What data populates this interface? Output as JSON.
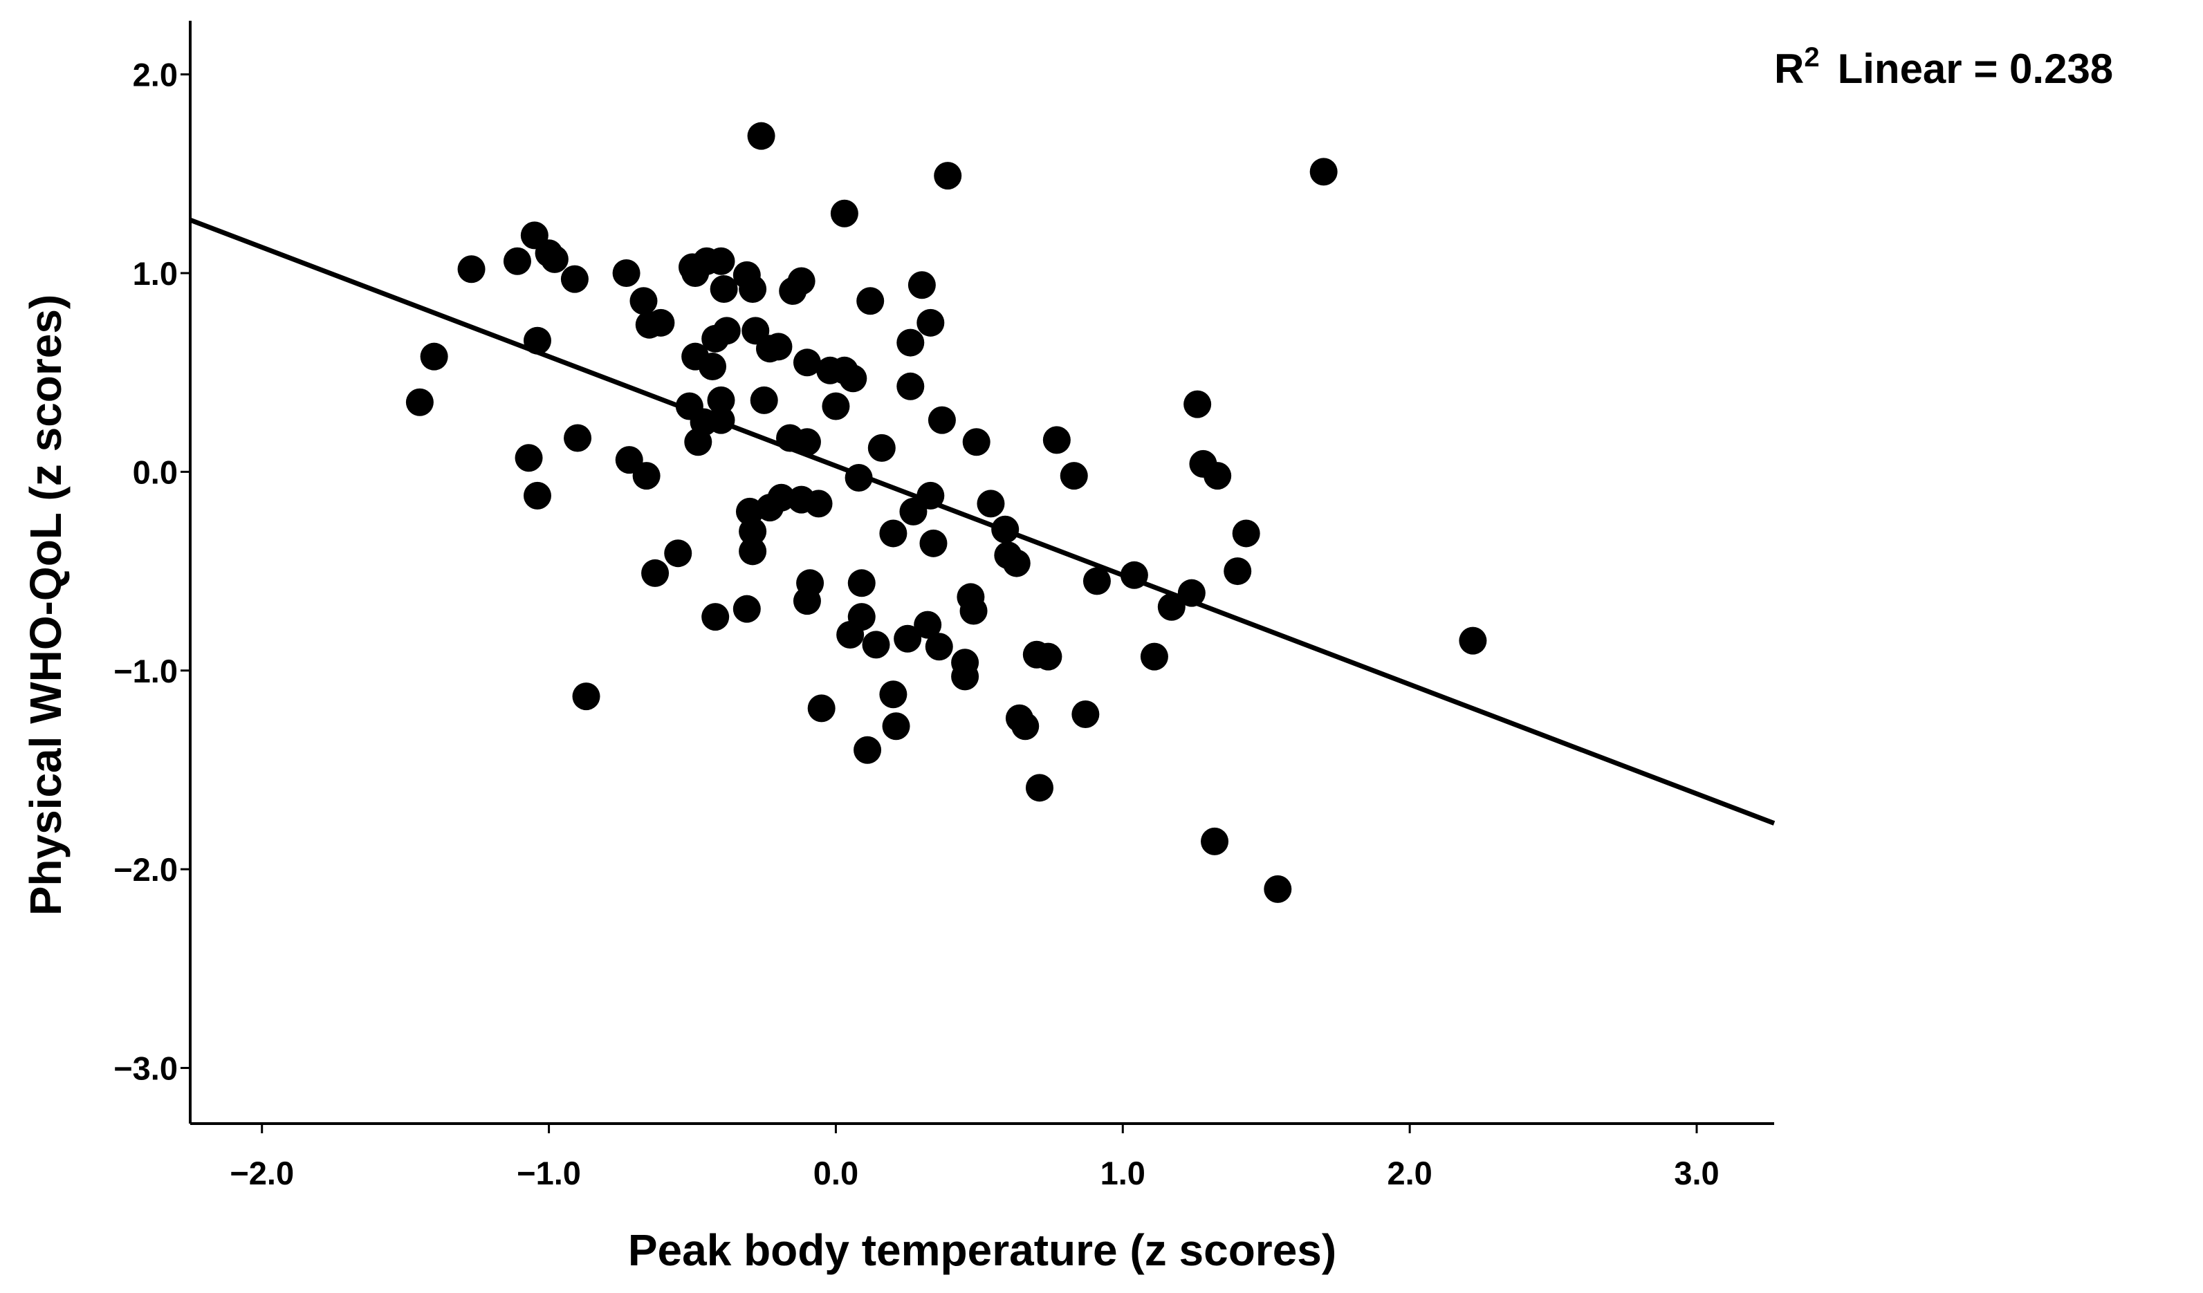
{
  "chart_data": {
    "type": "scatter",
    "xlabel": "Peak body temperature (z scores)",
    "ylabel": "Physical WHO-QoL (z scores)",
    "xlim": [
      -2.25,
      3.27
    ],
    "ylim": [
      -3.28,
      2.27
    ],
    "xticks": [
      -2.0,
      -1.0,
      0.0,
      1.0,
      2.0,
      3.0
    ],
    "xtick_labels": [
      "−2.0",
      "−1.0",
      "0.0",
      "1.0",
      "2.0",
      "3.0"
    ],
    "yticks": [
      2.0,
      1.0,
      0.0,
      -1.0,
      -2.0,
      -3.0
    ],
    "ytick_labels": [
      "2.0",
      "1.0",
      "0.0",
      "−1.0",
      "−2.0",
      "−3.0"
    ],
    "annotation": {
      "prefix": "R",
      "superscript": "2",
      "text": "Linear = 0.238"
    },
    "fit_line": {
      "slope": -0.55,
      "intercept": 0.03
    },
    "grid": false,
    "marker_color": "#000000",
    "points": [
      [
        -1.45,
        0.35
      ],
      [
        -1.4,
        0.58
      ],
      [
        -1.27,
        1.02
      ],
      [
        -1.11,
        1.06
      ],
      [
        -1.05,
        1.19
      ],
      [
        -1.0,
        1.1
      ],
      [
        -0.98,
        1.07
      ],
      [
        -1.04,
        0.66
      ],
      [
        -0.91,
        0.97
      ],
      [
        -1.07,
        0.07
      ],
      [
        -1.04,
        -0.12
      ],
      [
        -0.9,
        0.17
      ],
      [
        -0.87,
        -1.13
      ],
      [
        -0.73,
        1.0
      ],
      [
        -0.67,
        0.86
      ],
      [
        -0.65,
        0.74
      ],
      [
        -0.61,
        0.75
      ],
      [
        -0.72,
        0.06
      ],
      [
        -0.66,
        -0.02
      ],
      [
        -0.63,
        -0.51
      ],
      [
        -0.55,
        -0.41
      ],
      [
        -0.5,
        1.03
      ],
      [
        -0.49,
        1.0
      ],
      [
        -0.45,
        1.06
      ],
      [
        -0.4,
        1.06
      ],
      [
        -0.39,
        0.92
      ],
      [
        -0.42,
        0.67
      ],
      [
        -0.38,
        0.71
      ],
      [
        -0.49,
        0.58
      ],
      [
        -0.43,
        0.53
      ],
      [
        -0.51,
        0.33
      ],
      [
        -0.4,
        0.36
      ],
      [
        -0.4,
        0.26
      ],
      [
        -0.46,
        0.25
      ],
      [
        -0.48,
        0.15
      ],
      [
        -0.42,
        -0.73
      ],
      [
        -0.31,
        0.99
      ],
      [
        -0.29,
        0.92
      ],
      [
        -0.23,
        0.62
      ],
      [
        -0.2,
        0.63
      ],
      [
        -0.28,
        0.71
      ],
      [
        -0.25,
        0.36
      ],
      [
        -0.12,
        0.96
      ],
      [
        -0.15,
        0.91
      ],
      [
        -0.1,
        0.55
      ],
      [
        -0.3,
        -0.2
      ],
      [
        -0.29,
        -0.3
      ],
      [
        -0.29,
        -0.4
      ],
      [
        -0.31,
        -0.69
      ],
      [
        -0.23,
        -0.18
      ],
      [
        -0.19,
        -0.13
      ],
      [
        -0.16,
        0.17
      ],
      [
        -0.12,
        -0.14
      ],
      [
        -0.1,
        0.15
      ],
      [
        -0.09,
        -0.56
      ],
      [
        -0.1,
        -0.65
      ],
      [
        -0.06,
        -0.16
      ],
      [
        -0.02,
        0.51
      ],
      [
        0.03,
        0.51
      ],
      [
        0.06,
        0.47
      ],
      [
        0.0,
        0.33
      ],
      [
        -0.05,
        -1.19
      ],
      [
        0.03,
        1.3
      ],
      [
        0.12,
        0.86
      ],
      [
        0.08,
        -0.03
      ],
      [
        0.16,
        0.12
      ],
      [
        0.09,
        -0.56
      ],
      [
        0.09,
        -0.73
      ],
      [
        0.05,
        -0.82
      ],
      [
        0.14,
        -0.87
      ],
      [
        0.11,
        -1.4
      ],
      [
        0.2,
        -1.12
      ],
      [
        0.21,
        -1.28
      ],
      [
        0.26,
        0.65
      ],
      [
        0.26,
        0.43
      ],
      [
        0.25,
        -0.84
      ],
      [
        0.2,
        -0.31
      ],
      [
        0.27,
        -0.2
      ],
      [
        0.33,
        -0.12
      ],
      [
        0.3,
        0.94
      ],
      [
        0.33,
        0.75
      ],
      [
        0.39,
        1.49
      ],
      [
        0.37,
        0.26
      ],
      [
        0.34,
        -0.36
      ],
      [
        0.36,
        -0.88
      ],
      [
        0.32,
        -0.77
      ],
      [
        0.45,
        -0.96
      ],
      [
        0.45,
        -1.03
      ],
      [
        0.47,
        -0.63
      ],
      [
        0.48,
        -0.7
      ],
      [
        0.49,
        0.15
      ],
      [
        0.54,
        -0.16
      ],
      [
        0.59,
        -0.29
      ],
      [
        0.6,
        -0.42
      ],
      [
        0.63,
        -0.46
      ],
      [
        0.64,
        -1.24
      ],
      [
        0.66,
        -1.28
      ],
      [
        0.7,
        -0.92
      ],
      [
        0.71,
        -1.59
      ],
      [
        0.74,
        -0.93
      ],
      [
        0.77,
        0.16
      ],
      [
        0.83,
        -0.02
      ],
      [
        0.87,
        -1.22
      ],
      [
        0.91,
        -0.55
      ],
      [
        1.04,
        -0.52
      ],
      [
        1.11,
        -0.93
      ],
      [
        1.17,
        -0.68
      ],
      [
        1.24,
        -0.61
      ],
      [
        1.26,
        0.34
      ],
      [
        1.28,
        0.04
      ],
      [
        1.33,
        -0.02
      ],
      [
        1.43,
        -0.31
      ],
      [
        1.4,
        -0.5
      ],
      [
        1.32,
        -1.86
      ],
      [
        1.54,
        -2.1
      ],
      [
        1.7,
        1.51
      ],
      [
        2.22,
        -0.85
      ],
      [
        -0.26,
        1.69
      ]
    ]
  }
}
